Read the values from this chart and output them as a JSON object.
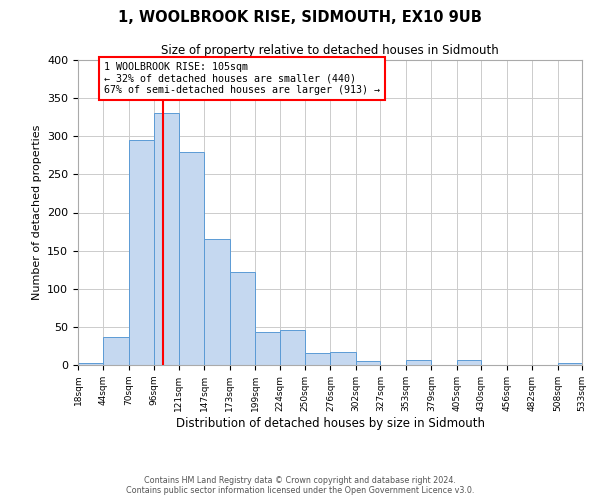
{
  "title": "1, WOOLBROOK RISE, SIDMOUTH, EX10 9UB",
  "subtitle": "Size of property relative to detached houses in Sidmouth",
  "xlabel": "Distribution of detached houses by size in Sidmouth",
  "ylabel": "Number of detached properties",
  "bin_edges": [
    18,
    44,
    70,
    96,
    121,
    147,
    173,
    199,
    224,
    250,
    276,
    302,
    327,
    353,
    379,
    405,
    430,
    456,
    482,
    508,
    533
  ],
  "bin_labels": [
    "18sqm",
    "44sqm",
    "70sqm",
    "96sqm",
    "121sqm",
    "147sqm",
    "173sqm",
    "199sqm",
    "224sqm",
    "250sqm",
    "276sqm",
    "302sqm",
    "327sqm",
    "353sqm",
    "379sqm",
    "405sqm",
    "430sqm",
    "456sqm",
    "482sqm",
    "508sqm",
    "533sqm"
  ],
  "counts": [
    2,
    37,
    295,
    330,
    279,
    165,
    122,
    43,
    46,
    16,
    17,
    5,
    0,
    6,
    0,
    7,
    0,
    0,
    0,
    2
  ],
  "bar_facecolor": "#c5d8f0",
  "bar_edgecolor": "#5b9bd5",
  "vline_x": 105,
  "vline_color": "red",
  "ylim": [
    0,
    400
  ],
  "yticks": [
    0,
    50,
    100,
    150,
    200,
    250,
    300,
    350,
    400
  ],
  "annotation_text": "1 WOOLBROOK RISE: 105sqm\n← 32% of detached houses are smaller (440)\n67% of semi-detached houses are larger (913) →",
  "annotation_box_edgecolor": "red",
  "footnote_line1": "Contains HM Land Registry data © Crown copyright and database right 2024.",
  "footnote_line2": "Contains public sector information licensed under the Open Government Licence v3.0.",
  "background_color": "#ffffff",
  "grid_color": "#cccccc"
}
